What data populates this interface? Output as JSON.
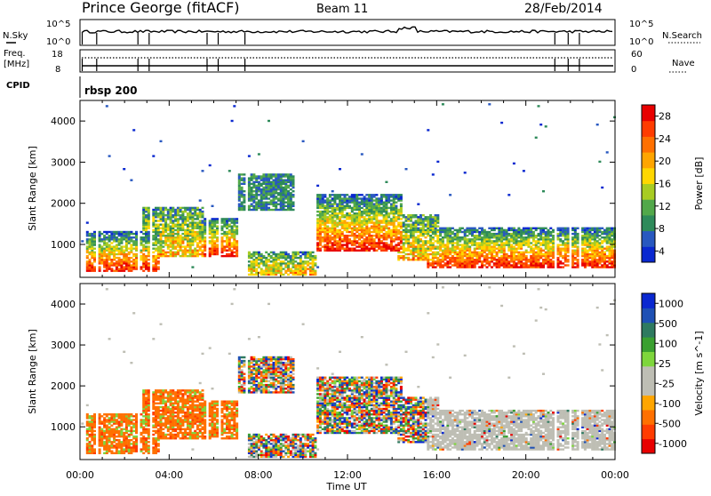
{
  "header": {
    "station": "Prince George (fitACF)",
    "beam": "Beam 11",
    "date": "28/Feb/2014"
  },
  "nsky_panel": {
    "left_label": "N.Sky",
    "left_ticks": [
      "10^5",
      "10^0"
    ],
    "right_ticks": [
      "10^5",
      "10^0"
    ],
    "right_label": "N.Search"
  },
  "freq_panel": {
    "left_label_1": "Freq.",
    "left_label_2": "[MHz]",
    "left_ticks": [
      "18",
      "8"
    ],
    "right_ticks": [
      "60",
      "0"
    ],
    "right_label": "Nave"
  },
  "cpid": {
    "label": "CPID",
    "value": "rbsp 200"
  },
  "chart_data": [
    {
      "type": "heatmap",
      "ylabel": "Slant Range [km]",
      "xlabel": "",
      "ylim": [
        200,
        4500
      ],
      "xlim": [
        0,
        24
      ],
      "y_ticks": [
        "4000",
        "3000",
        "2000",
        "1000"
      ],
      "x_ticks": [
        "00:00",
        "04:00",
        "08:00",
        "12:00",
        "16:00",
        "20:00",
        "00:00"
      ],
      "colorbar": {
        "label": "Power [dB]",
        "ticks": [
          "28",
          "24",
          "20",
          "16",
          "12",
          "8",
          "4"
        ],
        "colors": [
          "#0a28d0",
          "#2858c0",
          "#2e8a5a",
          "#52a84a",
          "#a8cc22",
          "#ffd700",
          "#ffa500",
          "#ff7000",
          "#ff3c00",
          "#e80000"
        ]
      }
    },
    {
      "type": "heatmap",
      "ylabel": "Slant Range [km]",
      "xlabel": "Time UT",
      "ylim": [
        200,
        4500
      ],
      "xlim": [
        0,
        24
      ],
      "y_ticks": [
        "4000",
        "3000",
        "2000",
        "1000"
      ],
      "x_ticks": [
        "00:00",
        "04:00",
        "08:00",
        "12:00",
        "16:00",
        "20:00",
        "00:00"
      ],
      "colorbar": {
        "label": "Velocity [m s^-1]",
        "ticks": [
          "1000",
          "500",
          "100",
          "25",
          "-25",
          "-100",
          "-500",
          "-1000"
        ],
        "colors": [
          "#e80000",
          "#ff3c00",
          "#ff7000",
          "#ffa500",
          "#bebeb4",
          "#bebeb4",
          "#7ed63c",
          "#3aa030",
          "#2e7a60",
          "#1e50b4",
          "#0a28d0"
        ]
      }
    }
  ]
}
